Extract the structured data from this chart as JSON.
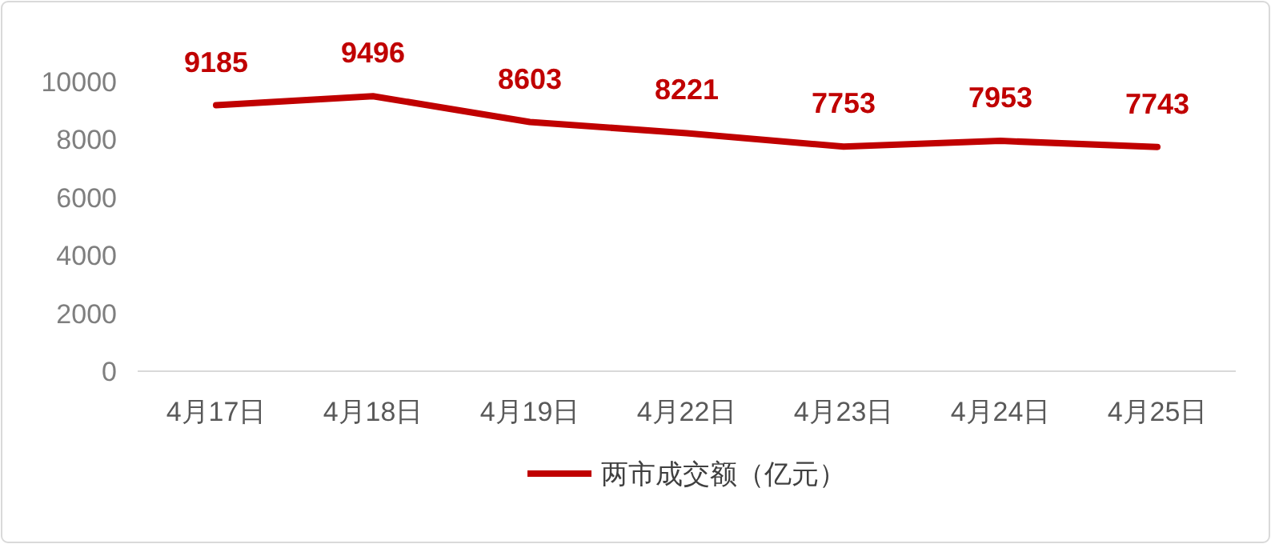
{
  "chart_data": {
    "type": "line",
    "categories": [
      "4月17日",
      "4月18日",
      "4月19日",
      "4月22日",
      "4月23日",
      "4月24日",
      "4月25日"
    ],
    "series": [
      {
        "name": "两市成交额（亿元）",
        "color": "#c00000",
        "values": [
          9185,
          9496,
          8603,
          8221,
          7753,
          7953,
          7743
        ]
      }
    ],
    "ylim": [
      0,
      10000
    ],
    "yticks": [
      0,
      2000,
      4000,
      6000,
      8000,
      10000
    ],
    "grid": false,
    "legend": "bottom",
    "data_labels": true,
    "marker": "none",
    "line_style": "solid"
  }
}
